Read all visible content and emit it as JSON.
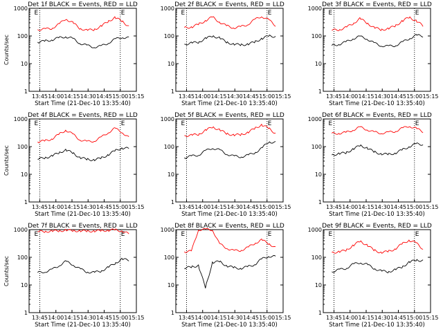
{
  "chart_data": [
    {
      "type": "line",
      "title": "Det 1f BLACK = Events, RED = LLD",
      "xlabel": "Start Time (21-Dec-10 13:35:40)",
      "ylabel": "Counts/sec",
      "yscale": "log",
      "ylim": [
        1,
        1000
      ],
      "xlim": [
        "13:35",
        "15:15"
      ],
      "x_ticks": [
        "13:45",
        "14:00",
        "14:15",
        "14:30",
        "14:45",
        "15:00",
        "15:15"
      ],
      "y_ticks": [
        "1",
        "10",
        "100",
        "1000"
      ],
      "markers": [
        "E",
        "E"
      ],
      "series": [
        {
          "color": "#ff0000",
          "values": [
            170,
            175,
            190,
            260,
            420,
            300,
            190,
            160,
            170,
            220,
            330,
            460,
            350,
            220
          ]
        },
        {
          "color": "#000000",
          "values": [
            60,
            65,
            72,
            85,
            95,
            80,
            55,
            45,
            40,
            42,
            55,
            75,
            90,
            85
          ]
        }
      ]
    },
    {
      "type": "line",
      "title": "Det 2f BLACK = Events, RED = LLD",
      "xlabel": "Start Time (21-Dec-10 13:35:40)",
      "ylabel": "",
      "yscale": "log",
      "ylim": [
        1,
        1000
      ],
      "xlim": [
        "13:35",
        "15:15"
      ],
      "x_ticks": [
        "13:45",
        "14:00",
        "14:15",
        "14:30",
        "14:45",
        "15:00",
        "15:15"
      ],
      "y_ticks": [
        "1",
        "10",
        "100",
        "1000"
      ],
      "markers": [
        "E",
        "E"
      ],
      "series": [
        {
          "color": "#ff0000",
          "values": [
            200,
            210,
            260,
            360,
            480,
            320,
            230,
            200,
            210,
            260,
            380,
            520,
            380,
            240
          ]
        },
        {
          "color": "#000000",
          "values": [
            50,
            55,
            60,
            80,
            100,
            85,
            60,
            50,
            48,
            50,
            60,
            80,
            100,
            95
          ]
        }
      ]
    },
    {
      "type": "line",
      "title": "Det 3f BLACK = Events, RED = LLD",
      "xlabel": "Start Time (21-Dec-10 13:35:40)",
      "ylabel": "",
      "yscale": "log",
      "ylim": [
        1,
        1000
      ],
      "xlim": [
        "13:35",
        "15:15"
      ],
      "x_ticks": [
        "13:45",
        "14:00",
        "14:15",
        "14:30",
        "14:45",
        "15:00",
        "15:15"
      ],
      "y_ticks": [
        "1",
        "10",
        "100",
        "1000"
      ],
      "markers": [
        "E",
        "E"
      ],
      "series": [
        {
          "color": "#ff0000",
          "values": [
            160,
            170,
            200,
            280,
            420,
            300,
            200,
            170,
            180,
            230,
            340,
            470,
            360,
            230
          ]
        },
        {
          "color": "#000000",
          "values": [
            45,
            50,
            60,
            80,
            95,
            80,
            55,
            45,
            42,
            45,
            58,
            80,
            105,
            100
          ]
        }
      ]
    },
    {
      "type": "line",
      "title": "Det 4f BLACK = Events, RED = LLD",
      "xlabel": "Start Time (21-Dec-10 13:35:40)",
      "ylabel": "Counts/sec",
      "yscale": "log",
      "ylim": [
        1,
        1000
      ],
      "xlim": [
        "13:35",
        "15:15"
      ],
      "x_ticks": [
        "13:45",
        "14:00",
        "14:15",
        "14:30",
        "14:45",
        "15:00",
        "15:15"
      ],
      "y_ticks": [
        "1",
        "10",
        "100",
        "1000"
      ],
      "markers": [
        "E",
        "E"
      ],
      "series": [
        {
          "color": "#ff0000",
          "values": [
            150,
            160,
            190,
            270,
            400,
            280,
            180,
            150,
            160,
            210,
            320,
            450,
            340,
            210
          ]
        },
        {
          "color": "#000000",
          "values": [
            35,
            40,
            45,
            60,
            75,
            60,
            40,
            35,
            33,
            38,
            50,
            70,
            90,
            85
          ]
        }
      ]
    },
    {
      "type": "line",
      "title": "Det 5f BLACK = Events, RED = LLD",
      "xlabel": "Start Time (21-Dec-10 13:35:40)",
      "ylabel": "",
      "yscale": "log",
      "ylim": [
        1,
        1000
      ],
      "xlim": [
        "13:35",
        "15:15"
      ],
      "x_ticks": [
        "13:45",
        "14:00",
        "14:15",
        "14:30",
        "14:45",
        "15:00",
        "15:15"
      ],
      "y_ticks": [
        "1",
        "10",
        "100",
        "1000"
      ],
      "markers": [
        "E",
        "E"
      ],
      "series": [
        {
          "color": "#ff0000",
          "values": [
            250,
            255,
            280,
            380,
            520,
            400,
            300,
            260,
            270,
            320,
            450,
            620,
            460,
            300
          ]
        },
        {
          "color": "#000000",
          "values": [
            40,
            45,
            50,
            70,
            90,
            75,
            55,
            45,
            43,
            48,
            60,
            85,
            150,
            140
          ]
        }
      ]
    },
    {
      "type": "line",
      "title": "Det 6f BLACK = Events, RED = LLD",
      "xlabel": "Start Time (21-Dec-10 13:35:40)",
      "ylabel": "",
      "yscale": "log",
      "ylim": [
        1,
        1000
      ],
      "xlim": [
        "13:35",
        "15:15"
      ],
      "x_ticks": [
        "13:45",
        "14:00",
        "14:15",
        "14:30",
        "14:45",
        "15:00",
        "15:15"
      ],
      "y_ticks": [
        "1",
        "10",
        "100",
        "1000"
      ],
      "markers": [
        "E",
        "E"
      ],
      "series": [
        {
          "color": "#ff0000",
          "values": [
            300,
            305,
            320,
            400,
            500,
            420,
            330,
            310,
            320,
            360,
            450,
            560,
            450,
            350
          ]
        },
        {
          "color": "#000000",
          "values": [
            50,
            55,
            60,
            80,
            110,
            90,
            65,
            55,
            52,
            58,
            75,
            100,
            125,
            120
          ]
        }
      ]
    },
    {
      "type": "line",
      "title": "Det 7f BLACK = Events, RED = LLD",
      "xlabel": "Start Time (21-Dec-10 13:35:40)",
      "ylabel": "Counts/sec",
      "yscale": "log",
      "ylim": [
        1,
        1000
      ],
      "xlim": [
        "13:35",
        "15:15"
      ],
      "x_ticks": [
        "13:45",
        "14:00",
        "14:15",
        "14:30",
        "14:45",
        "15:00",
        "15:15"
      ],
      "y_ticks": [
        "1",
        "10",
        "100",
        "1000"
      ],
      "markers": [
        "E",
        "E"
      ],
      "series": [
        {
          "color": "#ff0000",
          "values": [
            850,
            860,
            880,
            900,
            950,
            920,
            900,
            880,
            890,
            910,
            950,
            980,
            900,
            700
          ]
        },
        {
          "color": "#000000",
          "values": [
            28,
            30,
            35,
            50,
            70,
            55,
            38,
            30,
            28,
            32,
            42,
            60,
            85,
            80
          ]
        }
      ]
    },
    {
      "type": "line",
      "title": "Det 8f BLACK = Events, RED = LLD",
      "xlabel": "Start Time (21-Dec-10 13:35:40)",
      "ylabel": "",
      "yscale": "log",
      "ylim": [
        1,
        1000
      ],
      "xlim": [
        "13:35",
        "15:15"
      ],
      "x_ticks": [
        "13:45",
        "14:00",
        "14:15",
        "14:30",
        "14:45",
        "15:00",
        "15:15"
      ],
      "y_ticks": [
        "1",
        "10",
        "100",
        "1000"
      ],
      "markers": [
        "E",
        "E"
      ],
      "series": [
        {
          "color": "#ff0000",
          "values": [
            160,
            165,
            1000,
            1000,
            1000,
            300,
            220,
            170,
            180,
            220,
            320,
            420,
            320,
            220
          ]
        },
        {
          "color": "#000000",
          "values": [
            40,
            45,
            50,
            8,
            65,
            70,
            50,
            42,
            40,
            45,
            55,
            85,
            110,
            105
          ]
        }
      ]
    },
    {
      "type": "line",
      "title": "Det 9f BLACK = Events, RED = LLD",
      "xlabel": "Start Time (21-Dec-10 13:35:40)",
      "ylabel": "",
      "yscale": "log",
      "ylim": [
        1,
        1000
      ],
      "xlim": [
        "13:35",
        "15:15"
      ],
      "x_ticks": [
        "13:45",
        "14:00",
        "14:15",
        "14:30",
        "14:45",
        "15:00",
        "15:15"
      ],
      "y_ticks": [
        "1",
        "10",
        "100",
        "1000"
      ],
      "markers": [
        "E",
        "E"
      ],
      "series": [
        {
          "color": "#ff0000",
          "values": [
            150,
            155,
            180,
            260,
            380,
            280,
            180,
            150,
            160,
            200,
            300,
            420,
            330,
            200
          ]
        },
        {
          "color": "#000000",
          "values": [
            30,
            35,
            40,
            55,
            65,
            55,
            40,
            32,
            30,
            35,
            45,
            65,
            80,
            75
          ]
        }
      ]
    }
  ]
}
